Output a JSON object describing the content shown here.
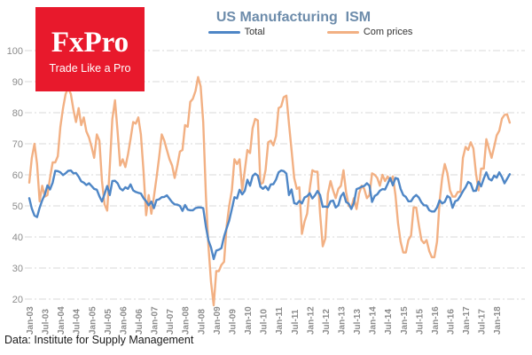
{
  "logo": {
    "brand": "FxPro",
    "tagline": "Trade Like a Pro",
    "bg_color": "#e8192c",
    "text_color": "#ffffff"
  },
  "footer": {
    "source_text": "Data: Institute for Supply Management"
  },
  "chart_data": {
    "type": "line",
    "title": "US Manufacturing  ISM",
    "xlabel": "",
    "ylabel": "",
    "x_frequency": "monthly",
    "x_start": "Jan-03",
    "x_end": "Jun-18",
    "x_tick_labels": [
      "Jan-03",
      "Jul-03",
      "Jan-04",
      "Jul-04",
      "Jan-05",
      "Jul-05",
      "Jan-06",
      "Jul-06",
      "Jan-07",
      "Jul-07",
      "Jan-08",
      "Jul-08",
      "Jan-09",
      "Jul-09",
      "Jan-10",
      "Jul-10",
      "Jan-11",
      "Jul-11",
      "Jan-12",
      "Jul-12",
      "Jan-13",
      "Jul-13",
      "Jan-14",
      "Jul-14",
      "Jan-15",
      "Jul-15",
      "Jan-16",
      "Jul-16",
      "Jan-17",
      "Jul-17",
      "Jan-18"
    ],
    "y_ticks": [
      20,
      30,
      40,
      50,
      60,
      70,
      80,
      90,
      100
    ],
    "ylim": [
      20,
      100
    ],
    "grid": "horizontal, dash-dot, light gray",
    "legend_position": "top-center",
    "gridline_color": "#d9d9d9",
    "axis_label_color": "#8c8c8c",
    "title_color": "#6d8cab",
    "series": [
      {
        "name": "Total",
        "color": "#4e86c6",
        "values": [
          52.5,
          49.1,
          46.9,
          46.4,
          49.4,
          51.8,
          53.7,
          56.6,
          55.3,
          57.5,
          61.3,
          61.2,
          60.8,
          59.9,
          60.5,
          61.3,
          61.4,
          60.5,
          60.6,
          59.4,
          57.9,
          57.5,
          56.7,
          57.3,
          56.4,
          55.5,
          55.2,
          53.1,
          51.4,
          53.8,
          56.4,
          53.5,
          58.0,
          58.1,
          57.3,
          55.6,
          55.0,
          56.0,
          55.5,
          56.9,
          55.0,
          54.5,
          54.2,
          54.0,
          52.5,
          51.5,
          50.2,
          51.4,
          49.3,
          51.9,
          52.1,
          52.8,
          52.9,
          53.4,
          52.3,
          51.2,
          50.5,
          50.4,
          50.0,
          48.4,
          50.3,
          48.8,
          48.6,
          48.6,
          49.3,
          49.5,
          49.5,
          49.3,
          43.4,
          38.9,
          36.6,
          32.9,
          35.6,
          35.9,
          36.4,
          40.1,
          42.8,
          45.3,
          49.0,
          52.8,
          52.4,
          55.2,
          53.7,
          54.9,
          58.4,
          56.5,
          59.6,
          60.4,
          59.7,
          56.2,
          55.5,
          56.3,
          55.1,
          56.9,
          57.0,
          58.5,
          60.8,
          61.4,
          61.2,
          60.4,
          53.5,
          55.3,
          50.9,
          50.6,
          51.6,
          50.8,
          52.7,
          53.1,
          54.1,
          52.4,
          53.4,
          54.8,
          53.5,
          49.7,
          49.8,
          49.6,
          51.5,
          51.7,
          49.5,
          50.2,
          53.1,
          54.2,
          51.3,
          50.7,
          49.0,
          50.9,
          55.4,
          55.7,
          56.2,
          56.4,
          57.3,
          56.5,
          51.3,
          53.2,
          53.7,
          54.9,
          55.4,
          55.3,
          57.1,
          59.0,
          56.6,
          59.0,
          58.7,
          55.5,
          53.5,
          52.9,
          51.5,
          51.5,
          52.8,
          53.5,
          52.7,
          51.1,
          50.2,
          50.1,
          48.6,
          48.2,
          48.2,
          49.5,
          51.8,
          50.8,
          51.3,
          53.2,
          52.6,
          49.4,
          51.5,
          51.9,
          53.2,
          54.7,
          56.0,
          57.7,
          57.2,
          54.8,
          54.9,
          57.8,
          56.3,
          58.8,
          60.8,
          58.7,
          58.2,
          59.7,
          59.1,
          60.8,
          59.3,
          57.3,
          58.7,
          60.2
        ]
      },
      {
        "name": "Com prices",
        "color": "#f2b083",
        "values": [
          57.5,
          65.5,
          70.0,
          63.5,
          51.5,
          56.5,
          53.0,
          53.5,
          59.0,
          64.0,
          64.0,
          66.0,
          75.5,
          81.5,
          86.0,
          88.0,
          86.0,
          81.0,
          77.0,
          81.5,
          76.0,
          78.5,
          74.0,
          72.0,
          69.0,
          65.5,
          73.0,
          71.0,
          58.0,
          50.5,
          48.5,
          62.5,
          78.0,
          84.0,
          74.0,
          63.0,
          65.0,
          62.5,
          66.5,
          71.5,
          77.0,
          76.5,
          78.5,
          73.0,
          61.0,
          47.0,
          53.5,
          47.5,
          53.0,
          59.0,
          65.5,
          73.0,
          71.0,
          68.0,
          65.0,
          63.0,
          59.0,
          63.0,
          67.5,
          68.0,
          76.0,
          75.5,
          83.5,
          84.5,
          87.0,
          91.5,
          88.5,
          77.0,
          53.5,
          37.0,
          25.5,
          18.0,
          29.0,
          29.0,
          31.0,
          32.0,
          43.5,
          50.0,
          55.0,
          65.0,
          63.5,
          65.0,
          55.0,
          61.5,
          68.0,
          67.0,
          75.0,
          78.0,
          77.5,
          57.0,
          57.5,
          61.5,
          70.5,
          71.0,
          69.5,
          72.5,
          81.5,
          82.0,
          85.0,
          85.5,
          76.5,
          68.0,
          59.0,
          55.5,
          56.0,
          41.0,
          45.0,
          47.5,
          55.5,
          61.5,
          61.0,
          61.0,
          47.5,
          37.0,
          39.5,
          54.0,
          58.0,
          55.0,
          52.5,
          55.5,
          56.5,
          61.5,
          54.5,
          50.0,
          49.5,
          52.5,
          49.0,
          54.0,
          56.5,
          55.5,
          52.5,
          53.5,
          60.5,
          60.0,
          59.0,
          56.5,
          60.0,
          58.0,
          59.5,
          58.0,
          59.5,
          53.5,
          44.5,
          38.5,
          35.0,
          35.0,
          39.0,
          40.5,
          49.5,
          49.5,
          44.0,
          39.0,
          38.0,
          39.0,
          35.5,
          33.5,
          33.5,
          38.5,
          51.5,
          59.0,
          63.5,
          60.5,
          55.0,
          53.0,
          53.0,
          54.5,
          54.5,
          65.5,
          69.0,
          68.0,
          70.5,
          68.5,
          60.5,
          55.0,
          62.0,
          62.0,
          71.5,
          68.5,
          65.5,
          69.0,
          72.7,
          74.2,
          78.1,
          79.3,
          79.5,
          76.8
        ]
      }
    ]
  }
}
